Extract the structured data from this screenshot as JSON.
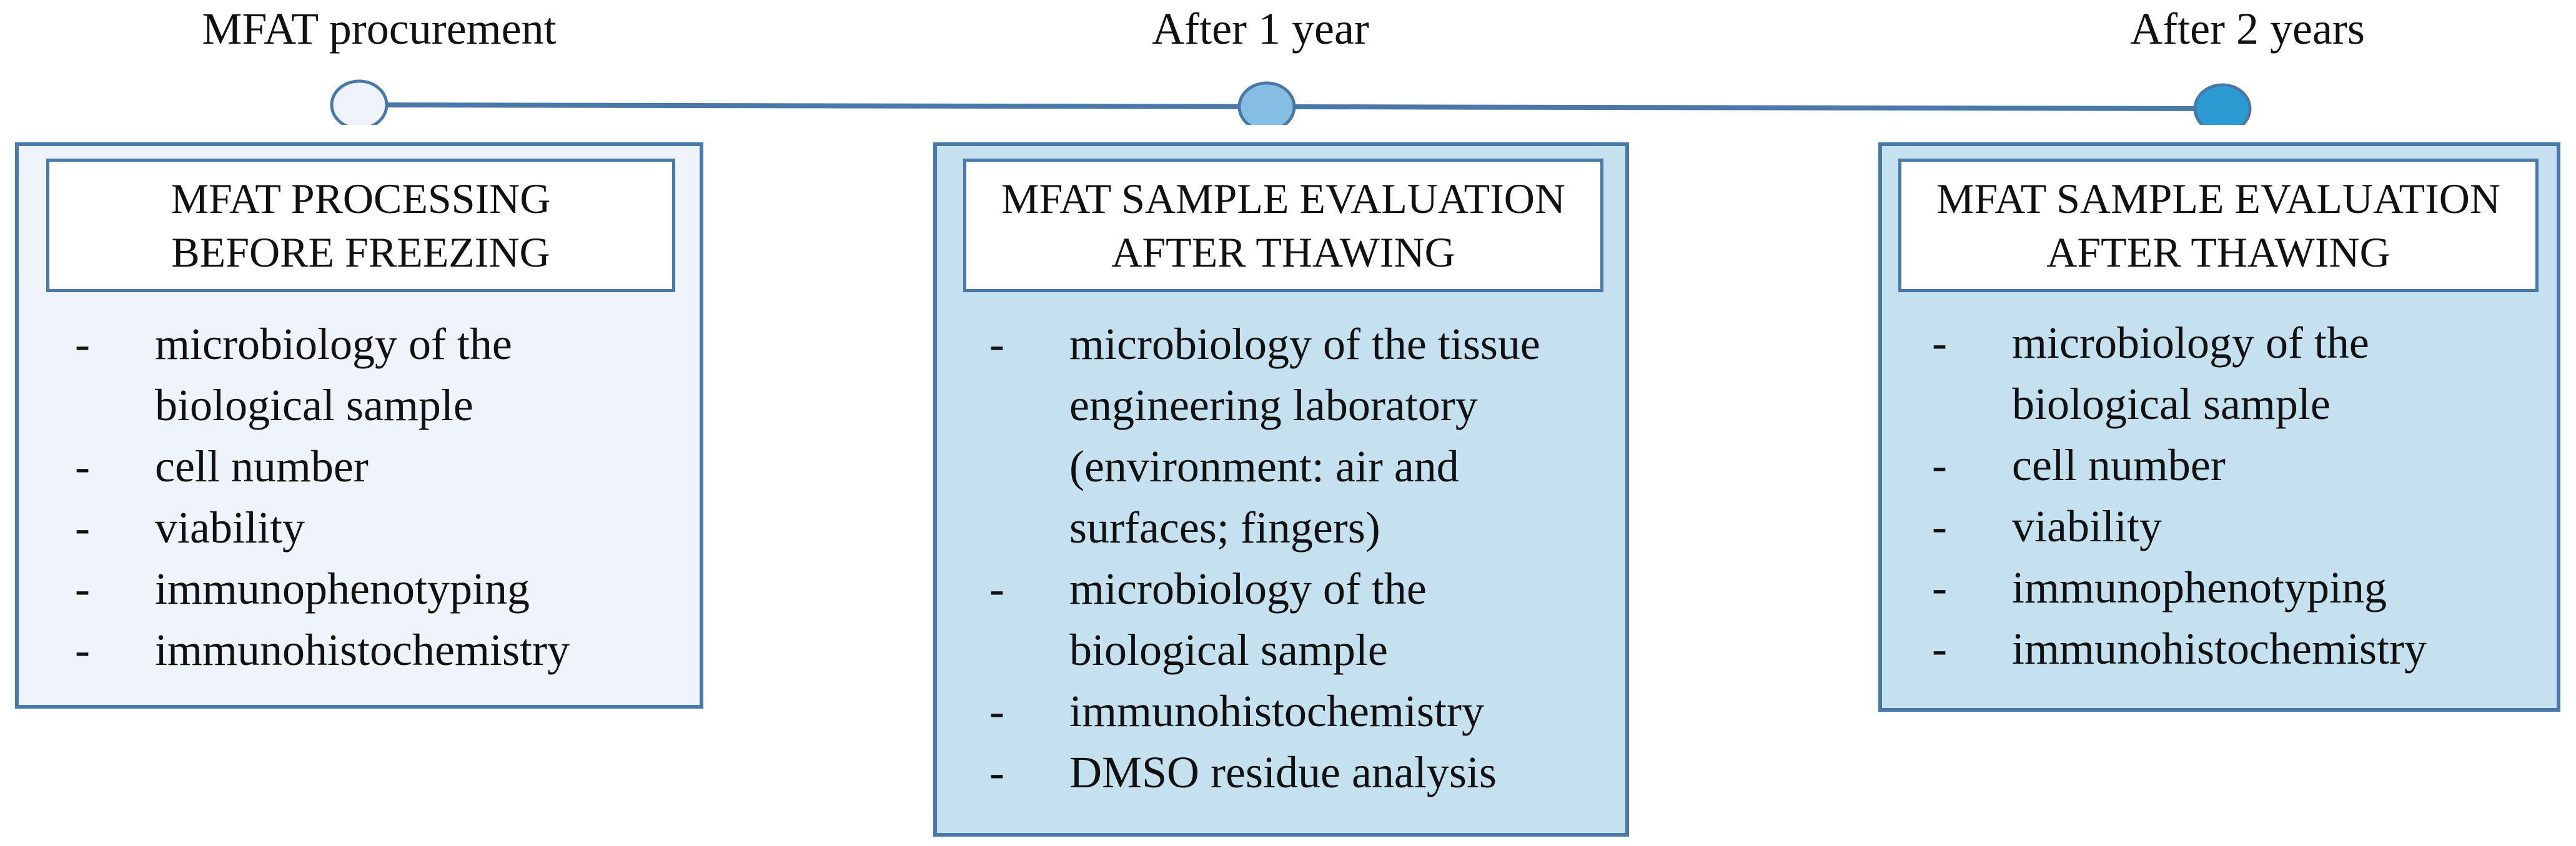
{
  "timeline": {
    "milestones": [
      {
        "label": "MFAT procurement",
        "fill": "#eef4f9"
      },
      {
        "label": "After 1 year",
        "fill": "#86bde2"
      },
      {
        "label": "After 2 years",
        "fill": "#2a9bd1"
      }
    ],
    "line_color": "#4a78a8"
  },
  "stages": [
    {
      "title_line1": "MFAT PROCESSING",
      "title_line2": "BEFORE FREEZING",
      "fill": "#eef4f9",
      "items": [
        [
          "microbiology of the",
          "biological sample"
        ],
        [
          "cell number"
        ],
        [
          "viability"
        ],
        [
          "immunophenotyping"
        ],
        [
          "immunohistochemistry"
        ]
      ]
    },
    {
      "title_line1": "MFAT SAMPLE EVALUATION",
      "title_line2": "AFTER THAWING",
      "fill": "#c5e0ef",
      "items": [
        [
          "microbiology of the tissue",
          "engineering laboratory",
          "(environment: air and",
          "surfaces; fingers)"
        ],
        [
          "microbiology of the",
          "biological sample"
        ],
        [
          "immunohistochemistry"
        ],
        [
          "DMSO residue analysis"
        ]
      ]
    },
    {
      "title_line1": "MFAT SAMPLE EVALUATION",
      "title_line2": "AFTER THAWING",
      "fill": "#c5e0ef",
      "items": [
        [
          "microbiology of the",
          "biological sample"
        ],
        [
          "cell number"
        ],
        [
          "viability"
        ],
        [
          "immunophenotyping"
        ],
        [
          "immunohistochemistry"
        ]
      ]
    }
  ],
  "bullet_symbol": "-"
}
